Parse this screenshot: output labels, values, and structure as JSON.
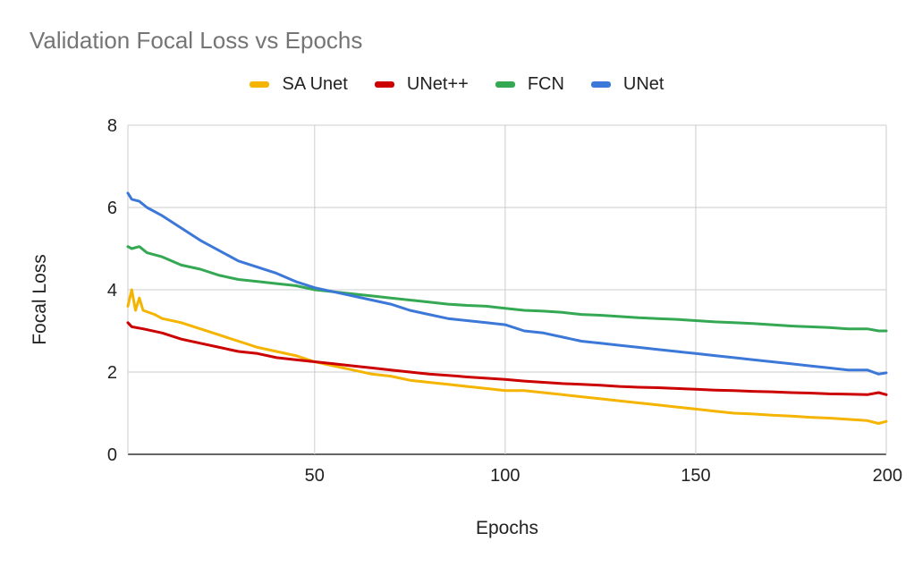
{
  "chart_data": {
    "type": "line",
    "title": "Validation Focal Loss vs Epochs",
    "xlabel": "Epochs",
    "ylabel": "Focal Loss",
    "xlim": [
      1,
      200
    ],
    "ylim": [
      0,
      8
    ],
    "xticks": [
      "50",
      "100",
      "150",
      "200"
    ],
    "yticks": [
      "0",
      "2",
      "4",
      "6",
      "8"
    ],
    "grid": true,
    "legend_position": "top",
    "series": [
      {
        "name": "SA Unet",
        "color": "#f4b400",
        "points": [
          [
            1,
            3.6
          ],
          [
            2,
            4.0
          ],
          [
            3,
            3.5
          ],
          [
            4,
            3.8
          ],
          [
            5,
            3.5
          ],
          [
            8,
            3.4
          ],
          [
            10,
            3.3
          ],
          [
            15,
            3.2
          ],
          [
            20,
            3.05
          ],
          [
            25,
            2.9
          ],
          [
            30,
            2.75
          ],
          [
            35,
            2.6
          ],
          [
            40,
            2.5
          ],
          [
            45,
            2.4
          ],
          [
            50,
            2.25
          ],
          [
            55,
            2.15
          ],
          [
            60,
            2.05
          ],
          [
            65,
            1.95
          ],
          [
            70,
            1.9
          ],
          [
            75,
            1.8
          ],
          [
            80,
            1.75
          ],
          [
            85,
            1.7
          ],
          [
            90,
            1.65
          ],
          [
            95,
            1.6
          ],
          [
            100,
            1.55
          ],
          [
            105,
            1.55
          ],
          [
            110,
            1.5
          ],
          [
            115,
            1.45
          ],
          [
            120,
            1.4
          ],
          [
            125,
            1.35
          ],
          [
            130,
            1.3
          ],
          [
            135,
            1.25
          ],
          [
            140,
            1.2
          ],
          [
            145,
            1.15
          ],
          [
            150,
            1.1
          ],
          [
            155,
            1.05
          ],
          [
            160,
            1.0
          ],
          [
            165,
            0.98
          ],
          [
            170,
            0.95
          ],
          [
            175,
            0.93
          ],
          [
            180,
            0.9
          ],
          [
            185,
            0.88
          ],
          [
            190,
            0.85
          ],
          [
            195,
            0.82
          ],
          [
            198,
            0.75
          ],
          [
            200,
            0.8
          ]
        ]
      },
      {
        "name": "UNet++",
        "color": "#cc0000",
        "points": [
          [
            1,
            3.2
          ],
          [
            2,
            3.1
          ],
          [
            5,
            3.05
          ],
          [
            10,
            2.95
          ],
          [
            15,
            2.8
          ],
          [
            20,
            2.7
          ],
          [
            25,
            2.6
          ],
          [
            30,
            2.5
          ],
          [
            35,
            2.45
          ],
          [
            40,
            2.35
          ],
          [
            45,
            2.3
          ],
          [
            50,
            2.25
          ],
          [
            55,
            2.2
          ],
          [
            60,
            2.15
          ],
          [
            65,
            2.1
          ],
          [
            70,
            2.05
          ],
          [
            75,
            2.0
          ],
          [
            80,
            1.95
          ],
          [
            85,
            1.92
          ],
          [
            90,
            1.88
          ],
          [
            95,
            1.85
          ],
          [
            100,
            1.82
          ],
          [
            105,
            1.78
          ],
          [
            110,
            1.75
          ],
          [
            115,
            1.72
          ],
          [
            120,
            1.7
          ],
          [
            125,
            1.68
          ],
          [
            130,
            1.65
          ],
          [
            135,
            1.63
          ],
          [
            140,
            1.62
          ],
          [
            145,
            1.6
          ],
          [
            150,
            1.58
          ],
          [
            155,
            1.56
          ],
          [
            160,
            1.55
          ],
          [
            165,
            1.53
          ],
          [
            170,
            1.52
          ],
          [
            175,
            1.5
          ],
          [
            180,
            1.49
          ],
          [
            185,
            1.47
          ],
          [
            190,
            1.46
          ],
          [
            195,
            1.45
          ],
          [
            198,
            1.5
          ],
          [
            200,
            1.45
          ]
        ]
      },
      {
        "name": "FCN",
        "color": "#34a853",
        "points": [
          [
            1,
            5.05
          ],
          [
            2,
            5.0
          ],
          [
            4,
            5.05
          ],
          [
            6,
            4.9
          ],
          [
            10,
            4.8
          ],
          [
            15,
            4.6
          ],
          [
            20,
            4.5
          ],
          [
            25,
            4.35
          ],
          [
            30,
            4.25
          ],
          [
            35,
            4.2
          ],
          [
            40,
            4.15
          ],
          [
            45,
            4.1
          ],
          [
            50,
            4.0
          ],
          [
            55,
            3.95
          ],
          [
            60,
            3.9
          ],
          [
            65,
            3.85
          ],
          [
            70,
            3.8
          ],
          [
            75,
            3.75
          ],
          [
            80,
            3.7
          ],
          [
            85,
            3.65
          ],
          [
            90,
            3.62
          ],
          [
            95,
            3.6
          ],
          [
            100,
            3.55
          ],
          [
            105,
            3.5
          ],
          [
            110,
            3.48
          ],
          [
            115,
            3.45
          ],
          [
            120,
            3.4
          ],
          [
            125,
            3.38
          ],
          [
            130,
            3.35
          ],
          [
            135,
            3.32
          ],
          [
            140,
            3.3
          ],
          [
            145,
            3.28
          ],
          [
            150,
            3.25
          ],
          [
            155,
            3.22
          ],
          [
            160,
            3.2
          ],
          [
            165,
            3.18
          ],
          [
            170,
            3.15
          ],
          [
            175,
            3.12
          ],
          [
            180,
            3.1
          ],
          [
            185,
            3.08
          ],
          [
            190,
            3.05
          ],
          [
            195,
            3.05
          ],
          [
            198,
            3.0
          ],
          [
            200,
            3.0
          ]
        ]
      },
      {
        "name": "UNet",
        "color": "#3c78d8",
        "points": [
          [
            1,
            6.35
          ],
          [
            2,
            6.2
          ],
          [
            4,
            6.15
          ],
          [
            6,
            6.0
          ],
          [
            10,
            5.8
          ],
          [
            15,
            5.5
          ],
          [
            20,
            5.2
          ],
          [
            25,
            4.95
          ],
          [
            30,
            4.7
          ],
          [
            35,
            4.55
          ],
          [
            40,
            4.4
          ],
          [
            45,
            4.2
          ],
          [
            50,
            4.05
          ],
          [
            55,
            3.95
          ],
          [
            60,
            3.85
          ],
          [
            65,
            3.75
          ],
          [
            70,
            3.65
          ],
          [
            75,
            3.5
          ],
          [
            80,
            3.4
          ],
          [
            85,
            3.3
          ],
          [
            90,
            3.25
          ],
          [
            95,
            3.2
          ],
          [
            100,
            3.15
          ],
          [
            105,
            3.0
          ],
          [
            110,
            2.95
          ],
          [
            115,
            2.85
          ],
          [
            120,
            2.75
          ],
          [
            125,
            2.7
          ],
          [
            130,
            2.65
          ],
          [
            135,
            2.6
          ],
          [
            140,
            2.55
          ],
          [
            145,
            2.5
          ],
          [
            150,
            2.45
          ],
          [
            155,
            2.4
          ],
          [
            160,
            2.35
          ],
          [
            165,
            2.3
          ],
          [
            170,
            2.25
          ],
          [
            175,
            2.2
          ],
          [
            180,
            2.15
          ],
          [
            185,
            2.1
          ],
          [
            190,
            2.05
          ],
          [
            195,
            2.05
          ],
          [
            198,
            1.95
          ],
          [
            200,
            1.98
          ]
        ]
      }
    ]
  }
}
